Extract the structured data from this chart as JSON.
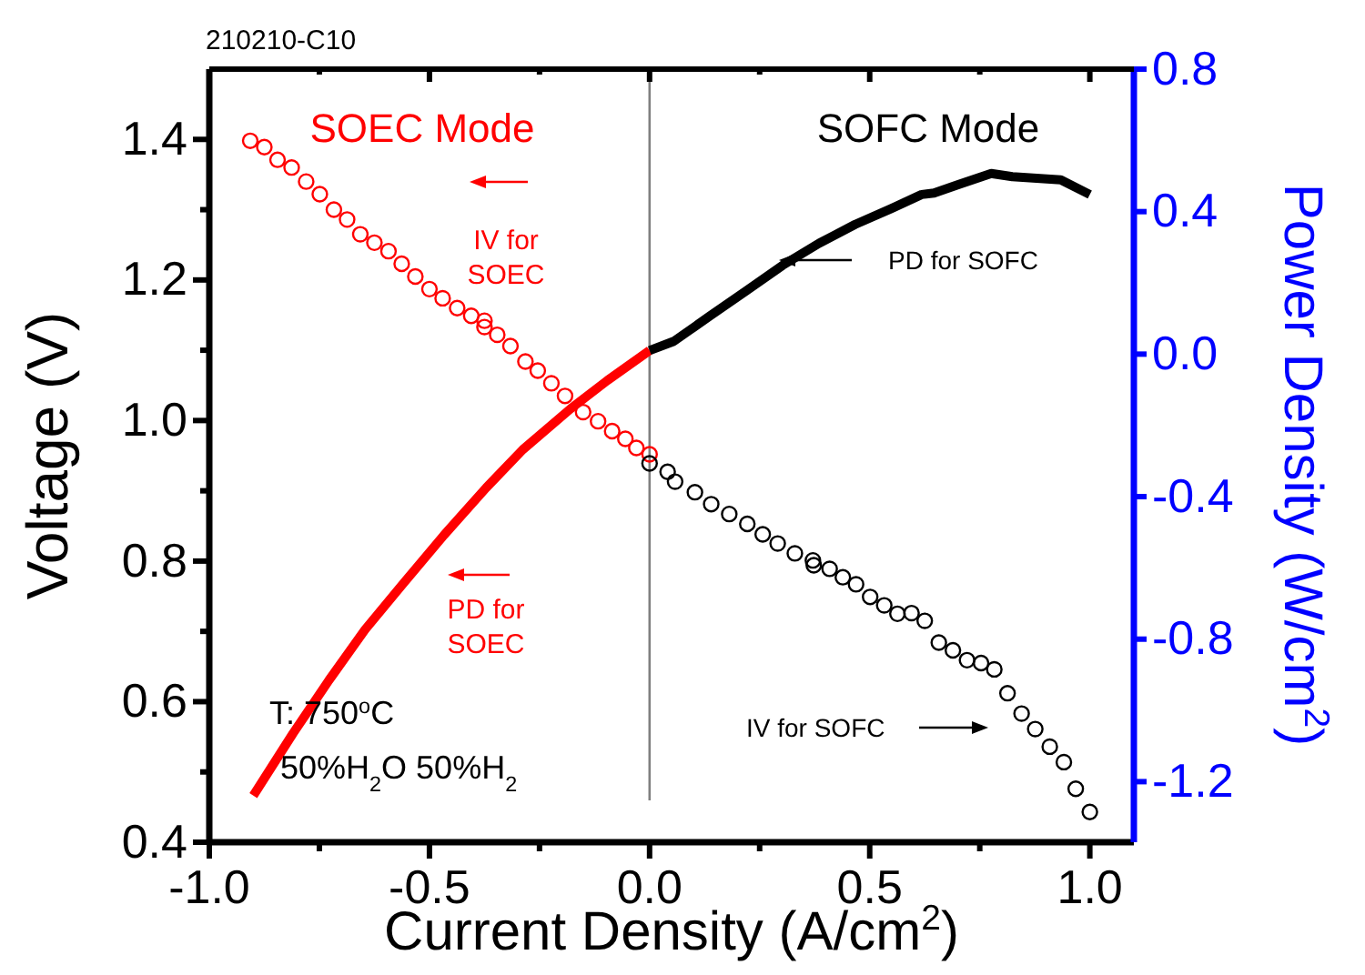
{
  "chart_data": {
    "type": "scatter",
    "title": "210210-C10",
    "xlabel": "Current Density (A/cm$^{2}$)",
    "ylabel": "Voltage (V)",
    "y2label": "Power Density (W/cm$^{2}$)",
    "xlim": [
      -1.0,
      1.1
    ],
    "ylim": [
      0.4,
      1.5
    ],
    "y2lim": [
      -1.37,
      0.8
    ],
    "xticks": [
      {
        "value": -1,
        "label": "-1.0"
      },
      {
        "value": -0.75,
        "label": null
      },
      {
        "value": -0.5,
        "label": "-0.5"
      },
      {
        "value": -0.25,
        "label": null
      },
      {
        "value": 0,
        "label": "0.0"
      },
      {
        "value": 0.25,
        "label": null
      },
      {
        "value": 0.5,
        "label": "0.5"
      },
      {
        "value": 0.75,
        "label": null
      },
      {
        "value": 1,
        "label": "1.0"
      }
    ],
    "yticks": [
      {
        "value": 0.4,
        "label": "0.4"
      },
      {
        "value": 0.5,
        "label": null
      },
      {
        "value": 0.6,
        "label": "0.6"
      },
      {
        "value": 0.7,
        "label": null
      },
      {
        "value": 0.8,
        "label": "0.8"
      },
      {
        "value": 0.9,
        "label": null
      },
      {
        "value": 1.0,
        "label": "1.0"
      },
      {
        "value": 1.1,
        "label": null
      },
      {
        "value": 1.2,
        "label": "1.2"
      },
      {
        "value": 1.3,
        "label": null
      },
      {
        "value": 1.4,
        "label": "1.4"
      }
    ],
    "y2ticks": [
      {
        "value": -1.2,
        "label": "-1.2"
      },
      {
        "value": -0.8,
        "label": "-0.8"
      },
      {
        "value": -0.4,
        "label": "-0.4"
      },
      {
        "value": 0,
        "label": "0.0"
      },
      {
        "value": 0.4,
        "label": "0.4"
      },
      {
        "value": 0.8,
        "label": "0.8"
      }
    ],
    "grid": false,
    "series": [
      {
        "marker": "circle",
        "color": "#ff0000",
        "x": [
          -0.907,
          -0.875,
          -0.845,
          -0.813,
          -0.78,
          -0.749,
          -0.717,
          -0.687,
          -0.657,
          -0.625,
          -0.593,
          -0.563,
          -0.532,
          -0.5,
          -0.47,
          -0.437,
          -0.405,
          -0.375,
          -0.375,
          -0.346,
          -0.316,
          -0.282,
          -0.254,
          -0.223,
          -0.192,
          -0.151,
          -0.117,
          -0.085,
          -0.055,
          -0.03,
          0
        ],
        "values": [
          1.398,
          1.389,
          1.371,
          1.36,
          1.34,
          1.322,
          1.3,
          1.286,
          1.265,
          1.253,
          1.241,
          1.223,
          1.205,
          1.187,
          1.174,
          1.16,
          1.149,
          1.142,
          1.133,
          1.122,
          1.106,
          1.084,
          1.071,
          1.053,
          1.035,
          1.012,
          0.999,
          0.985,
          0.974,
          0.961,
          0.952
        ]
      },
      {
        "marker": "circle",
        "color": "#000000",
        "x": [
          0,
          0.041,
          0.058,
          0.103,
          0.14,
          0.181,
          0.222,
          0.257,
          0.291,
          0.33,
          0.371,
          0.373,
          0.409,
          0.439,
          0.469,
          0.501,
          0.533,
          0.563,
          0.595,
          0.625,
          0.657,
          0.689,
          0.721,
          0.753,
          0.783,
          0.813,
          0.845,
          0.876,
          0.909,
          0.941,
          0.968,
          1.0
        ],
        "values": [
          0.939,
          0.927,
          0.913,
          0.898,
          0.881,
          0.867,
          0.853,
          0.838,
          0.825,
          0.811,
          0.801,
          0.794,
          0.789,
          0.777,
          0.767,
          0.749,
          0.737,
          0.725,
          0.726,
          0.715,
          0.684,
          0.673,
          0.659,
          0.655,
          0.646,
          0.612,
          0.583,
          0.561,
          0.536,
          0.514,
          0.476,
          0.443
        ]
      },
      {
        "type": "line",
        "axis": "y2",
        "marker": "none",
        "line_style": "solid",
        "color": "#ff0000",
        "x": [
          -0.9,
          -0.81,
          -0.728,
          -0.646,
          -0.563,
          -0.467,
          -0.371,
          -0.288,
          -0.179,
          -0.096,
          0
        ],
        "values": [
          -1.239,
          -1.065,
          -0.915,
          -0.773,
          -0.649,
          -0.508,
          -0.375,
          -0.268,
          -0.153,
          -0.074,
          0.01
        ]
      },
      {
        "type": "line",
        "axis": "y2",
        "marker": "none",
        "line_style": "solid",
        "color": "#000000",
        "x": [
          0,
          0.055,
          0.137,
          0.22,
          0.302,
          0.385,
          0.467,
          0.55,
          0.618,
          0.646,
          0.701,
          0.776,
          0.824,
          0.934,
          1.0
        ],
        "values": [
          0.01,
          0.036,
          0.107,
          0.178,
          0.249,
          0.311,
          0.364,
          0.409,
          0.448,
          0.452,
          0.476,
          0.507,
          0.498,
          0.489,
          0.448
        ]
      }
    ],
    "ref_lines": [
      {
        "axis": "x",
        "value": 0,
        "color": "#808080",
        "line_style": "solid"
      }
    ],
    "annotations": [
      "SOEC Mode",
      "SOFC Mode",
      "IV for SOEC",
      "PD for SOEC",
      "PD for SOFC",
      "IV for SOFC",
      "T: 750$^{o}$C",
      "50%H$_{2}$O 50%H$_{2}$"
    ]
  }
}
